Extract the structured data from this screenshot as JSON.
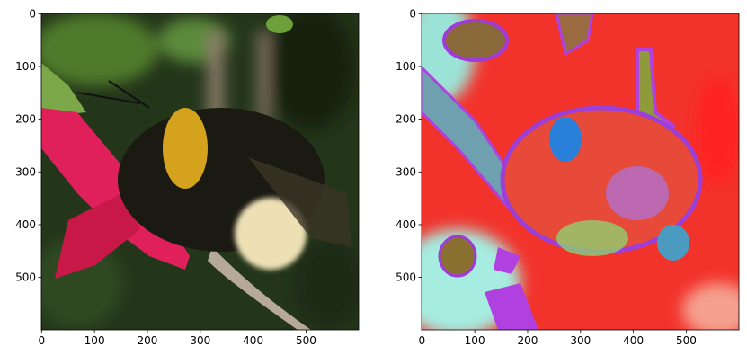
{
  "chart_data": [
    {
      "type": "image",
      "xlim": [
        -0.5,
        599.5
      ],
      "ylim": [
        599.5,
        -0.5
      ],
      "xticks": [
        0,
        100,
        200,
        300,
        400,
        500
      ],
      "yticks": [
        0,
        100,
        200,
        300,
        400,
        500
      ]
    },
    {
      "type": "image",
      "xlim": [
        -0.5,
        599.5
      ],
      "ylim": [
        599.5,
        -0.5
      ],
      "xticks": [
        0,
        100,
        200,
        300,
        400,
        500
      ],
      "yticks": [
        0,
        100,
        200,
        300,
        400,
        500
      ]
    }
  ]
}
